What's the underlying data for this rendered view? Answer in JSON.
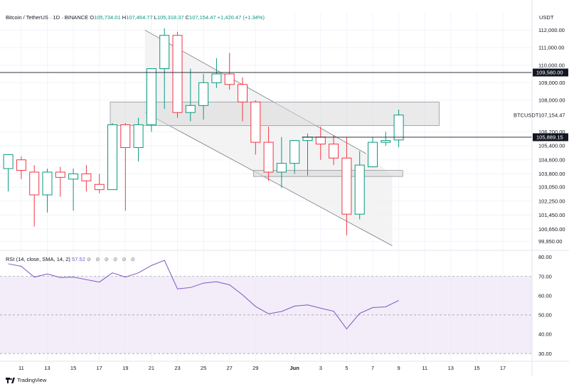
{
  "legend": {
    "symbol": "Bitcoin / TetherUS · 1D · BINANCE",
    "open_label": "O",
    "open": "105,734.01",
    "high_label": "H",
    "high": "107,464.77",
    "low_label": "L",
    "low": "105,318.37",
    "close_label": "C",
    "close": "107,154.47",
    "change": "+1,420.47 (+1.34%)"
  },
  "currency": "USDT",
  "rsi_legend": {
    "label": "RSI (14, close, SMA, 14, 2)",
    "value": "57.52",
    "controls": "⊘ ⊘ ⊘ ⊘ ⊘ ⊘"
  },
  "branding": "TradingView",
  "colors": {
    "up": "#089981",
    "down": "#f23645",
    "rsi": "#7e57c2",
    "rsi_band": "#ede7f6",
    "zone": "#d1d4dc",
    "grid": "#f0f3fa"
  },
  "price_axis": {
    "ticks": [
      "112,000.00",
      "111,000.00",
      "110,000.00",
      "109,000.00",
      "108,000.00",
      "106,200.00",
      "105,400.00",
      "104,600.00",
      "103,800.00",
      "103,050.00",
      "102,250.00",
      "101,450.00",
      "100,650.00",
      "99,950.00"
    ],
    "tick_values": [
      112000,
      111000,
      110000,
      109000,
      108000,
      106200,
      105400,
      104600,
      103800,
      103050,
      102250,
      101450,
      100650,
      99950
    ],
    "hline_1": "109,580.00",
    "hline_1_value": 109580,
    "hline_2": "105,889.15",
    "hline_2_value": 105889.15,
    "last_label": "BTCUSDT",
    "last_value_text": "107,154.47",
    "last_value": 107154.47
  },
  "rsi_axis": {
    "ticks": [
      "80.00",
      "70.00",
      "60.00",
      "50.00",
      "40.00",
      "30.00"
    ],
    "tick_values": [
      80,
      70,
      60,
      50,
      40,
      30
    ],
    "upper": 70,
    "lower": 30,
    "mid": 50
  },
  "time_axis": {
    "labels": [
      "11",
      "13",
      "15",
      "17",
      "19",
      "21",
      "23",
      "25",
      "27",
      "29",
      "Jun",
      "3",
      "5",
      "7",
      "9",
      "11",
      "13",
      "15",
      "17"
    ],
    "label_days": [
      0,
      2,
      4,
      6,
      8,
      10,
      12,
      14,
      16,
      18,
      21,
      23,
      25,
      27,
      29,
      31,
      33,
      35,
      37
    ]
  },
  "chart_data": {
    "type": "candlestick",
    "x_start": "May 10",
    "candles": [
      {
        "o": 104100,
        "h": 104900,
        "l": 102800,
        "c": 104900
      },
      {
        "o": 104600,
        "h": 104800,
        "l": 103500,
        "c": 104000
      },
      {
        "o": 103900,
        "h": 104300,
        "l": 100800,
        "c": 102600
      },
      {
        "o": 102600,
        "h": 104100,
        "l": 101600,
        "c": 103900
      },
      {
        "o": 103900,
        "h": 104200,
        "l": 102500,
        "c": 103600
      },
      {
        "o": 103500,
        "h": 104100,
        "l": 101700,
        "c": 103800
      },
      {
        "o": 103800,
        "h": 104300,
        "l": 102800,
        "c": 103400
      },
      {
        "o": 103200,
        "h": 103800,
        "l": 102700,
        "c": 102900
      },
      {
        "o": 102900,
        "h": 106700,
        "l": 102900,
        "c": 106600
      },
      {
        "o": 106600,
        "h": 106700,
        "l": 101700,
        "c": 105300
      },
      {
        "o": 105300,
        "h": 107000,
        "l": 104500,
        "c": 106600
      },
      {
        "o": 106600,
        "h": 109800,
        "l": 106200,
        "c": 109800
      },
      {
        "o": 109800,
        "h": 112100,
        "l": 107500,
        "c": 111700
      },
      {
        "o": 111700,
        "h": 111900,
        "l": 107000,
        "c": 107300
      },
      {
        "o": 107300,
        "h": 109800,
        "l": 106800,
        "c": 107700
      },
      {
        "o": 107700,
        "h": 109500,
        "l": 106900,
        "c": 109000
      },
      {
        "o": 109000,
        "h": 110400,
        "l": 108700,
        "c": 109500
      },
      {
        "o": 109500,
        "h": 110700,
        "l": 108600,
        "c": 108900
      },
      {
        "o": 108900,
        "h": 109300,
        "l": 106800,
        "c": 107900
      },
      {
        "o": 107900,
        "h": 108000,
        "l": 104900,
        "c": 105600
      },
      {
        "o": 105600,
        "h": 106500,
        "l": 103400,
        "c": 103900
      },
      {
        "o": 103900,
        "h": 105900,
        "l": 103000,
        "c": 104400
      },
      {
        "o": 104400,
        "h": 105700,
        "l": 103800,
        "c": 105700
      },
      {
        "o": 105700,
        "h": 106100,
        "l": 103700,
        "c": 105900
      },
      {
        "o": 105900,
        "h": 106500,
        "l": 104600,
        "c": 105500
      },
      {
        "o": 105500,
        "h": 106000,
        "l": 104300,
        "c": 104700
      },
      {
        "o": 104700,
        "h": 105900,
        "l": 100300,
        "c": 101500
      },
      {
        "o": 101500,
        "h": 105100,
        "l": 101200,
        "c": 104300
      },
      {
        "o": 104200,
        "h": 105900,
        "l": 104200,
        "c": 105600
      },
      {
        "o": 105600,
        "h": 106200,
        "l": 105400,
        "c": 105700
      },
      {
        "o": 105734.01,
        "h": 107464.77,
        "l": 105318.37,
        "c": 107154.47
      }
    ],
    "rsi": [
      76.5,
      75.2,
      69.6,
      71.2,
      69.4,
      69.6,
      68.3,
      67,
      71.8,
      69.6,
      71.8,
      75.6,
      78.3,
      63.5,
      64.2,
      66.5,
      67.2,
      65.6,
      60.4,
      54.4,
      50.6,
      51.8,
      54.6,
      55.2,
      53.5,
      51.9,
      42.8,
      50.8,
      53.8,
      54.2,
      57.52
    ],
    "price_range": [
      99600,
      112500
    ],
    "rsi_range": [
      26,
      82
    ]
  }
}
